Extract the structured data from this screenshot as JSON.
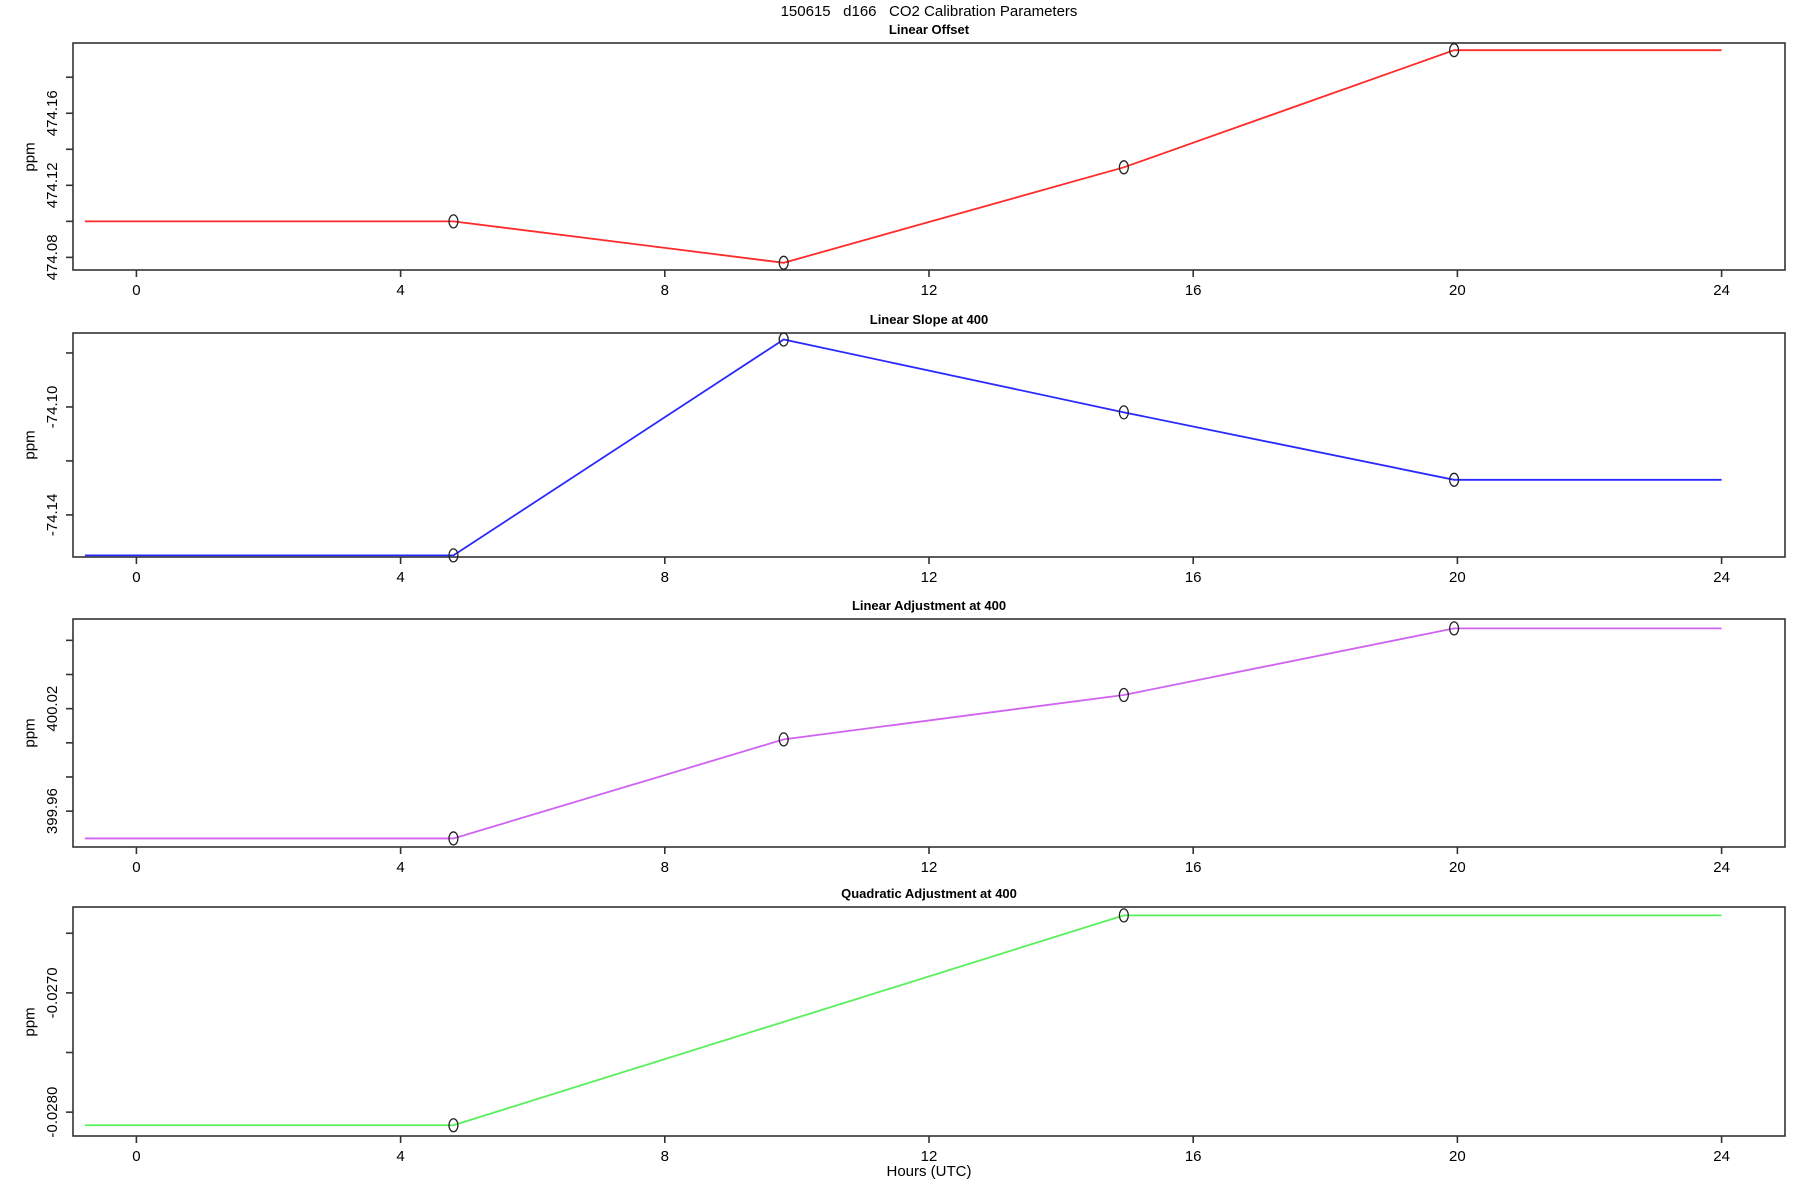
{
  "figure": {
    "title": "150615   d166   CO2 Calibration Parameters",
    "xlabel": "Hours (UTC)",
    "xticks": [
      0,
      4,
      8,
      12,
      16,
      20,
      24
    ],
    "xlim": [
      -0.96,
      24.96
    ],
    "background": "#ffffff",
    "axis_color": "#333333",
    "marker_color": "#222222"
  },
  "chart_data": [
    {
      "type": "line",
      "title": "Linear Offset",
      "ylabel": "ppm",
      "color": "#ff2a2a",
      "x": [
        -0.78,
        4.8,
        9.8,
        14.95,
        19.95,
        24
      ],
      "values": [
        474.1,
        474.1,
        474.077,
        474.13,
        474.195,
        474.195
      ],
      "marker_indices": [
        1,
        2,
        3,
        4
      ],
      "ylim": [
        474.073,
        474.199
      ],
      "yticks": [
        {
          "v": 474.08,
          "label": "474.08"
        },
        {
          "v": 474.1,
          "label": ""
        },
        {
          "v": 474.12,
          "label": "474.12"
        },
        {
          "v": 474.14,
          "label": ""
        },
        {
          "v": 474.16,
          "label": "474.16"
        },
        {
          "v": 474.18,
          "label": ""
        }
      ]
    },
    {
      "type": "line",
      "title": "Linear Slope at 400",
      "ylabel": "ppm",
      "color": "#2a2aff",
      "x": [
        -0.78,
        4.8,
        9.8,
        14.95,
        19.95,
        24
      ],
      "values": [
        -74.155,
        -74.155,
        -74.075,
        -74.102,
        -74.127,
        -74.127
      ],
      "marker_indices": [
        1,
        2,
        3,
        4
      ],
      "ylim": [
        -74.1556,
        -74.0726
      ],
      "yticks": [
        {
          "v": -74.14,
          "label": "-74.14"
        },
        {
          "v": -74.12,
          "label": ""
        },
        {
          "v": -74.1,
          "label": "-74.10"
        },
        {
          "v": -74.08,
          "label": ""
        }
      ]
    },
    {
      "type": "line",
      "title": "Linear Adjustment at 400",
      "ylabel": "ppm",
      "color": "#d063f0",
      "x": [
        -0.78,
        4.8,
        9.8,
        14.95,
        19.95,
        24
      ],
      "values": [
        399.944,
        399.944,
        400.002,
        400.028,
        400.067,
        400.067
      ],
      "marker_indices": [
        1,
        2,
        3,
        4
      ],
      "ylim": [
        399.939,
        400.0725
      ],
      "yticks": [
        {
          "v": 399.96,
          "label": "399.96"
        },
        {
          "v": 399.98,
          "label": ""
        },
        {
          "v": 400.0,
          "label": ""
        },
        {
          "v": 400.02,
          "label": "400.02"
        },
        {
          "v": 400.04,
          "label": ""
        },
        {
          "v": 400.06,
          "label": ""
        }
      ]
    },
    {
      "type": "line",
      "title": "Quadratic Adjustment at 400",
      "ylabel": "ppm",
      "color": "#58f05c",
      "x": [
        -0.78,
        4.8,
        14.95,
        24
      ],
      "values": [
        -0.02811,
        -0.02811,
        -0.02635,
        -0.02635
      ],
      "marker_indices": [
        1,
        2
      ],
      "ylim": [
        -0.0282,
        -0.02628
      ],
      "yticks": [
        {
          "v": -0.028,
          "label": "-0.0280"
        },
        {
          "v": -0.0275,
          "label": ""
        },
        {
          "v": -0.027,
          "label": "-0.0270"
        },
        {
          "v": -0.0265,
          "label": ""
        }
      ]
    }
  ]
}
